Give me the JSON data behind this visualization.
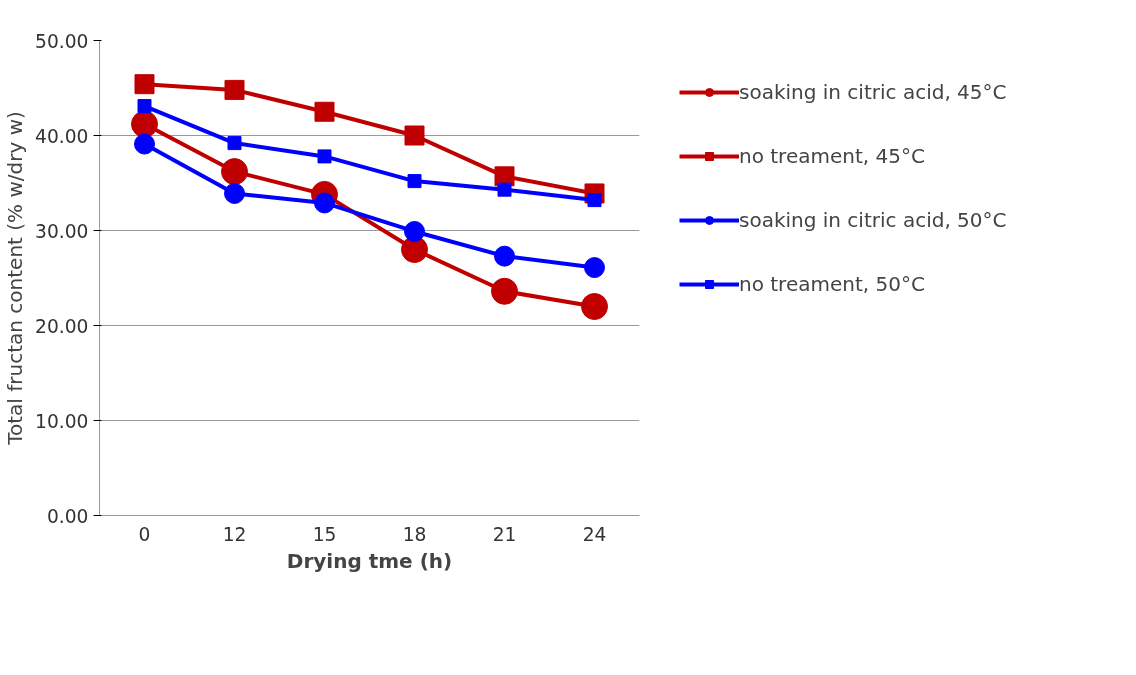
{
  "chart_data": {
    "type": "line",
    "xlabel": "Drying tme (h)",
    "ylabel": "Total fructan content (% w/dry w)",
    "categories": [
      "0",
      "12",
      "15",
      "18",
      "21",
      "24"
    ],
    "series": [
      {
        "name": "soaking in citric acid, 45°C",
        "color": "#c00000",
        "marker": "circle",
        "values": [
          41.2,
          36.2,
          33.8,
          28.0,
          23.6,
          22.0
        ]
      },
      {
        "name": "no treament, 45°C",
        "color": "#c00000",
        "marker": "square",
        "values": [
          45.4,
          44.8,
          42.5,
          40.0,
          35.7,
          33.9
        ]
      },
      {
        "name": "soaking in citric acid, 50°C",
        "color": "#0000ff",
        "marker": "circle",
        "values": [
          39.1,
          33.9,
          32.9,
          29.9,
          27.3,
          26.1
        ]
      },
      {
        "name": "no treament, 50°C",
        "color": "#0000ff",
        "marker": "square",
        "values": [
          43.1,
          39.2,
          37.8,
          35.2,
          34.3,
          33.2
        ]
      }
    ],
    "ylim": [
      0,
      50
    ],
    "yticks": [
      {
        "value": 0,
        "label": "0.00"
      },
      {
        "value": 10,
        "label": "10.00"
      },
      {
        "value": 20,
        "label": "20.00"
      },
      {
        "value": 30,
        "label": "30.00"
      },
      {
        "value": 40,
        "label": "40.00"
      },
      {
        "value": 50,
        "label": "50.00"
      }
    ],
    "grid": "y",
    "legend": "right",
    "line_style": "solid"
  }
}
